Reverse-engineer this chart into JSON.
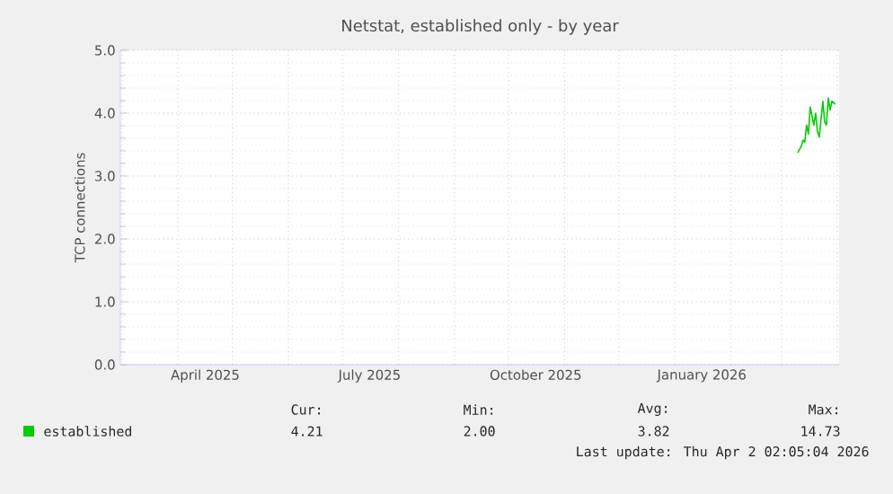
{
  "chart_data": {
    "type": "line",
    "title": "Netstat, established only - by year",
    "ylabel": "TCP connections",
    "x": [
      "2026-03-10",
      "2026-03-12",
      "2026-03-13",
      "2026-03-14",
      "2026-03-15",
      "2026-03-16",
      "2026-03-17",
      "2026-03-19",
      "2026-03-20",
      "2026-03-21",
      "2026-03-22",
      "2026-03-24",
      "2026-03-25",
      "2026-03-26",
      "2026-03-27",
      "2026-03-28",
      "2026-03-29",
      "2026-03-31"
    ],
    "series": [
      {
        "name": "established",
        "color": "#00cc00",
        "values": [
          3.37,
          3.47,
          3.57,
          3.54,
          3.81,
          3.67,
          4.1,
          3.81,
          4.0,
          3.71,
          3.62,
          4.19,
          3.86,
          3.81,
          4.24,
          4.05,
          4.19,
          4.14
        ]
      }
    ],
    "xlim": [
      "2025-02-28",
      "2026-04-02"
    ],
    "xticks": [
      {
        "value": "2025-03-01",
        "label": null
      },
      {
        "value": "2025-04-01",
        "label": null
      },
      {
        "value": "2025-04-16",
        "label": "April 2025"
      },
      {
        "value": "2025-05-01",
        "label": null
      },
      {
        "value": "2025-06-01",
        "label": null
      },
      {
        "value": "2025-07-01",
        "label": null
      },
      {
        "value": "2025-07-16",
        "label": "July 2025"
      },
      {
        "value": "2025-08-01",
        "label": null
      },
      {
        "value": "2025-09-01",
        "label": null
      },
      {
        "value": "2025-10-01",
        "label": null
      },
      {
        "value": "2025-10-16",
        "label": "October 2025"
      },
      {
        "value": "2025-11-01",
        "label": null
      },
      {
        "value": "2025-12-01",
        "label": null
      },
      {
        "value": "2026-01-01",
        "label": null
      },
      {
        "value": "2026-01-16",
        "label": "January 2026"
      },
      {
        "value": "2026-02-01",
        "label": null
      },
      {
        "value": "2026-03-01",
        "label": null
      },
      {
        "value": "2026-04-01",
        "label": null
      }
    ],
    "ylim": [
      0,
      5
    ],
    "yticks": [
      {
        "value": 0,
        "label": "0.0"
      },
      {
        "value": 1,
        "label": "1.0"
      },
      {
        "value": 2,
        "label": "2.0"
      },
      {
        "value": 3,
        "label": "3.0"
      },
      {
        "value": 4,
        "label": "4.0"
      },
      {
        "value": 5,
        "label": "5.0"
      }
    ],
    "grid": true,
    "legend": "bottom",
    "marker": "none",
    "line_style": "solid",
    "annotations": [
      "Cur:",
      "4.21",
      "Min:",
      "2.00",
      "Avg:",
      "3.82",
      "Max:",
      "14.73",
      "Last update: Thu Apr  2 02:05:04 2026"
    ]
  }
}
